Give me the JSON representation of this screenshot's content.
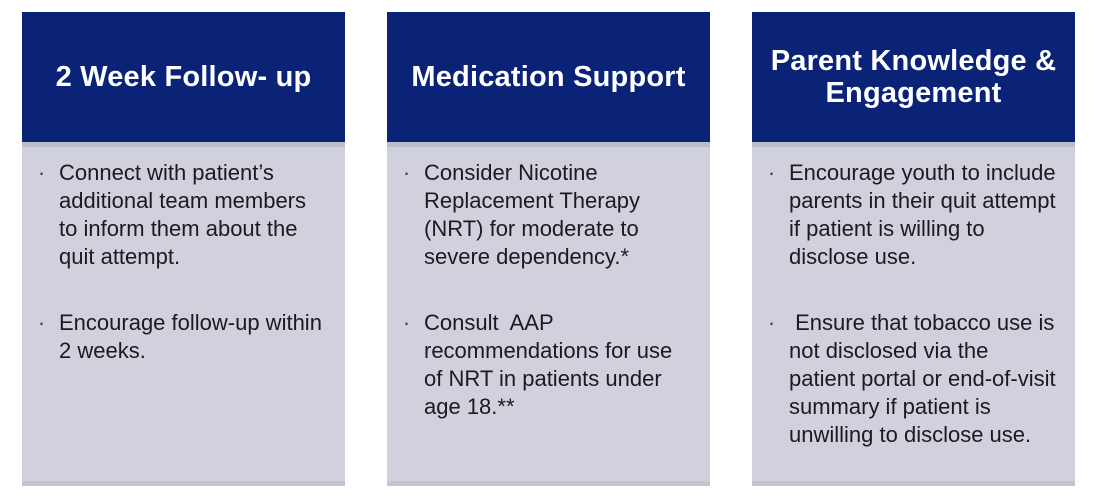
{
  "colors": {
    "header_bg": "#0a2377",
    "body_bg": "#d0d1dc",
    "header_shadow": "#b9bcc9",
    "body_edge": "#c3c5d1",
    "text": "#1a1a20",
    "header_text": "#ffffff",
    "bullet": "#3a3a44"
  },
  "bullet_char": "·",
  "cards": [
    {
      "title": "2 Week Follow- up",
      "bullets": [
        "Connect with patient’s additional team members to inform them about the quit attempt.",
        "Encourage follow-up within 2 weeks."
      ]
    },
    {
      "title": "Medication Support",
      "bullets": [
        "Consider Nicotine Replacement Therapy (NRT) for moderate to severe dependency.*",
        "Consult  AAP recommendations for use of NRT in patients under age 18.**"
      ]
    },
    {
      "title": "Parent Knowledge & Engagement",
      "bullets": [
        "Encourage youth to include parents in their quit attempt if patient is willing to disclose use.",
        " Ensure that tobacco use is  not disclosed via the patient portal or end-of-visit summary if patient is unwilling to disclose use."
      ]
    }
  ]
}
